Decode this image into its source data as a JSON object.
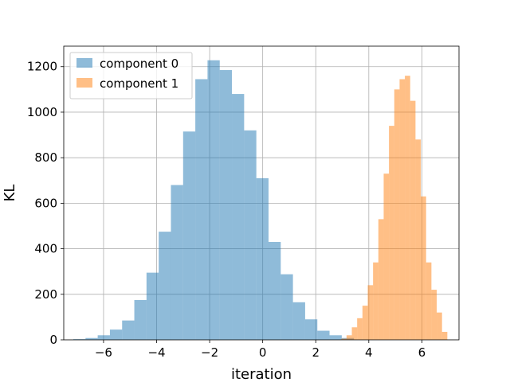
{
  "chart_data": {
    "type": "bar",
    "subtype": "histogram",
    "xlabel": "iteration",
    "ylabel": "KL",
    "xlim": [
      -7.5,
      7.4
    ],
    "ylim": [
      0,
      1290
    ],
    "xticks": [
      -6,
      -4,
      -2,
      0,
      2,
      4,
      6
    ],
    "yticks": [
      0,
      200,
      400,
      600,
      800,
      1000,
      1200
    ],
    "grid": true,
    "legend_position": "upper-left",
    "series": [
      {
        "name": "component 0",
        "color": "#1f77b4",
        "opacity": 0.5,
        "bin_width": 0.46,
        "bins": [
          [
            -7.14,
            3
          ],
          [
            -6.68,
            8
          ],
          [
            -6.22,
            20
          ],
          [
            -5.76,
            45
          ],
          [
            -5.3,
            85
          ],
          [
            -4.84,
            175
          ],
          [
            -4.38,
            295
          ],
          [
            -3.92,
            475
          ],
          [
            -3.46,
            680
          ],
          [
            -3.0,
            915
          ],
          [
            -2.54,
            1145
          ],
          [
            -2.08,
            1228
          ],
          [
            -1.62,
            1185
          ],
          [
            -1.16,
            1080
          ],
          [
            -0.7,
            920
          ],
          [
            -0.24,
            710
          ],
          [
            0.22,
            430
          ],
          [
            0.68,
            288
          ],
          [
            1.14,
            165
          ],
          [
            1.6,
            90
          ],
          [
            2.06,
            40
          ],
          [
            2.52,
            20
          ],
          [
            2.98,
            8
          ]
        ]
      },
      {
        "name": "component 1",
        "color": "#ff7f0e",
        "opacity": 0.5,
        "bin_width": 0.2,
        "bins": [
          [
            2.96,
            5
          ],
          [
            3.16,
            20
          ],
          [
            3.36,
            55
          ],
          [
            3.56,
            95
          ],
          [
            3.76,
            150
          ],
          [
            3.96,
            240
          ],
          [
            4.16,
            340
          ],
          [
            4.36,
            530
          ],
          [
            4.56,
            730
          ],
          [
            4.76,
            940
          ],
          [
            4.96,
            1100
          ],
          [
            5.16,
            1145
          ],
          [
            5.36,
            1160
          ],
          [
            5.56,
            1050
          ],
          [
            5.76,
            880
          ],
          [
            5.96,
            630
          ],
          [
            6.16,
            340
          ],
          [
            6.36,
            220
          ],
          [
            6.56,
            120
          ],
          [
            6.76,
            35
          ]
        ]
      }
    ]
  }
}
